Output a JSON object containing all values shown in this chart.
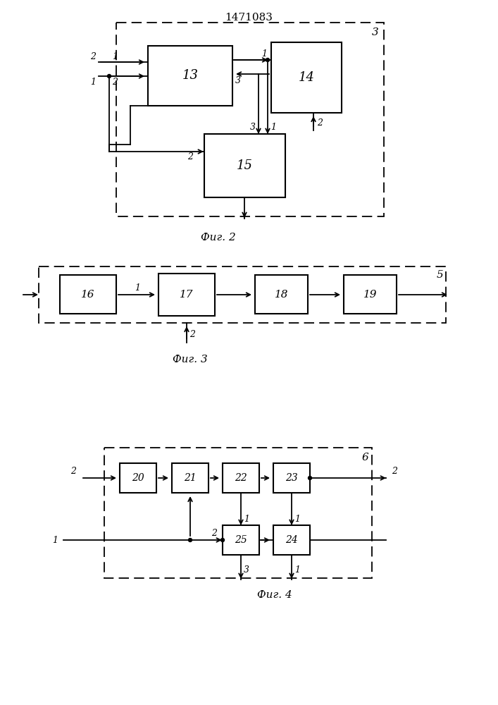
{
  "title": "1471083",
  "bg_color": "#ffffff",
  "caption1": "Фиг. 2",
  "caption2": "Фиг. 3",
  "caption3": "Фиг. 4"
}
